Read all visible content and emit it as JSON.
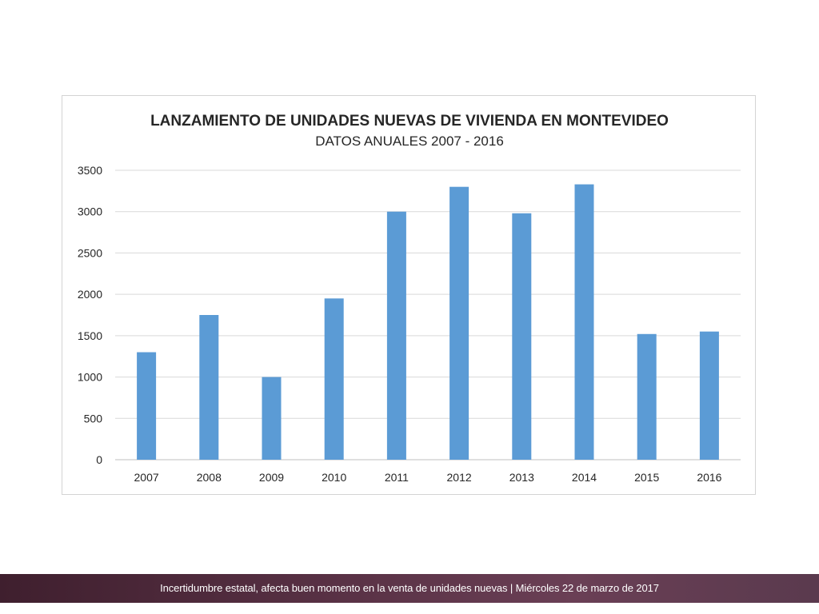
{
  "colors": {
    "bar": "#5b9bd5",
    "gridline": "#d9d9d9",
    "axis": "#bfbfbf",
    "footer_start": "#3f1f2e",
    "footer_end": "#6a3f55"
  },
  "chart_data": {
    "type": "bar",
    "title": "LANZAMIENTO DE UNIDADES NUEVAS DE VIVIENDA EN MONTEVIDEO",
    "subtitle": "DATOS ANUALES 2007 - 2016",
    "xlabel": "",
    "ylabel": "",
    "categories": [
      "2007",
      "2008",
      "2009",
      "2010",
      "2011",
      "2012",
      "2013",
      "2014",
      "2015",
      "2016"
    ],
    "values": [
      1300,
      1750,
      1000,
      1950,
      3000,
      3300,
      2980,
      3330,
      1520,
      1550
    ],
    "ylim": [
      0,
      3500
    ],
    "yticks": [
      0,
      500,
      1000,
      1500,
      2000,
      2500,
      3000,
      3500
    ],
    "grid": true,
    "legend": "none"
  },
  "footer": {
    "text": "Incertidumbre estatal, afecta buen momento en la venta de unidades nuevas | Miércoles 22 de marzo de 2017"
  }
}
